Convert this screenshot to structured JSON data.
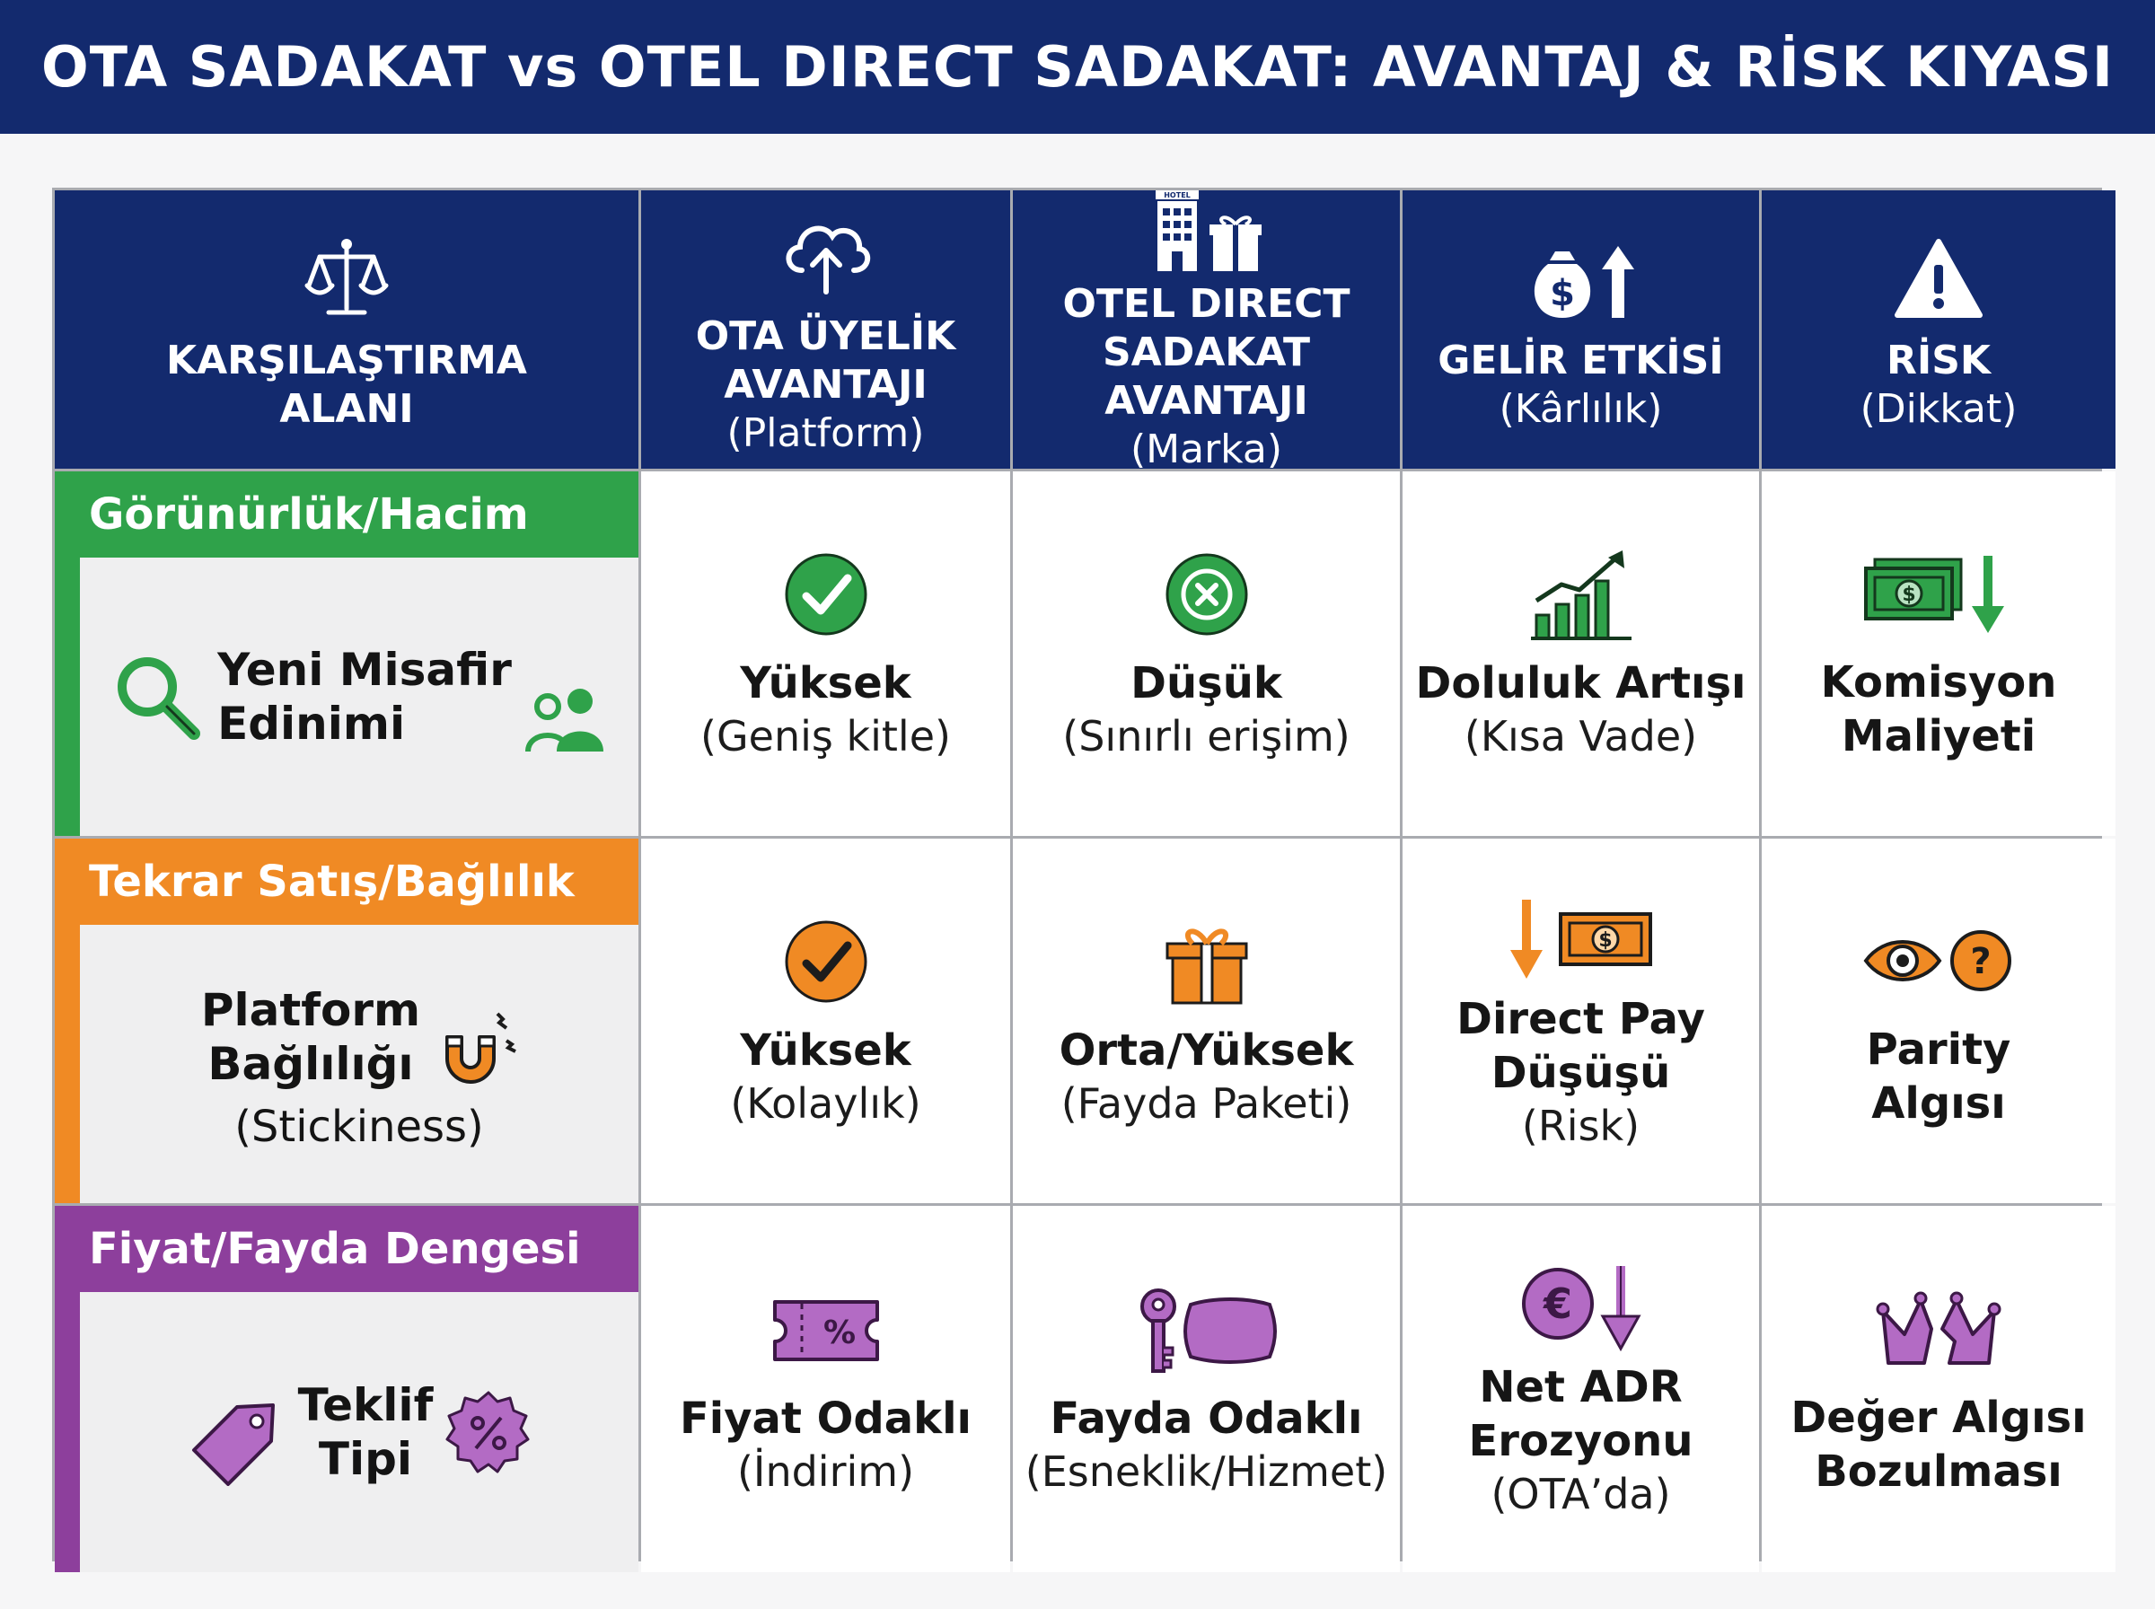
{
  "title": "OTA SADAKAT vs OTEL DIRECT SADAKAT: AVANTAJ & RİSK KIYASI",
  "colors": {
    "navy": "#132a6e",
    "green": "#2fa24a",
    "orange": "#f08a24",
    "purple": "#8d3f9c"
  },
  "header": [
    {
      "main": "KARŞILAŞTIRMA\nALANI",
      "sub": "",
      "icon": "scales-icon"
    },
    {
      "main": "OTA ÜYELİK\nAVANTAJI",
      "sub": "(Platform)",
      "icon": "cloud-upload-icon"
    },
    {
      "main": "OTEL DIRECT\nSADAKAT AVANTAJI",
      "sub": "(Marka)",
      "icon": "hotel-gift-icon"
    },
    {
      "main": "GELİR ETKİSİ",
      "sub": "(Kârlılık)",
      "icon": "money-bag-up-icon"
    },
    {
      "main": "RİSK",
      "sub": "(Dikkat)",
      "icon": "warning-icon"
    }
  ],
  "rows": [
    {
      "category": "Görünürlük/Hacim",
      "label": "Yeni Misafir\nEdinimi",
      "label_sub": "",
      "cells": [
        {
          "main": "Yüksek",
          "sub": "(Geniş kitle)",
          "icon": "check-circle-icon"
        },
        {
          "main": "Düşük",
          "sub": "(Sınırlı erişim)",
          "icon": "x-circle-icon"
        },
        {
          "main": "Doluluk Artışı",
          "sub": "(Kısa Vade)",
          "icon": "bar-chart-up-icon"
        },
        {
          "main": "Komisyon\nMaliyeti",
          "sub": "",
          "icon": "cash-down-icon"
        }
      ]
    },
    {
      "category": "Tekrar Satış/Bağlılık",
      "label": "Platform\nBağlılığı",
      "label_sub": "(Stickiness)",
      "cells": [
        {
          "main": "Yüksek",
          "sub": "(Kolaylık)",
          "icon": "check-circle-icon"
        },
        {
          "main": "Orta/Yüksek",
          "sub": "(Fayda Paketi)",
          "icon": "gift-icon"
        },
        {
          "main": "Direct Pay\nDüşüşü",
          "sub": "(Risk)",
          "icon": "down-arrow-cash-icon"
        },
        {
          "main": "Parity\nAlgısı",
          "sub": "",
          "icon": "eye-question-icon"
        }
      ]
    },
    {
      "category": "Fiyat/Fayda Dengesi",
      "label": "Teklif\nTipi",
      "label_sub": "",
      "cells": [
        {
          "main": "Fiyat Odaklı",
          "sub": "(İndirim)",
          "icon": "percent-ticket-icon"
        },
        {
          "main": "Fayda Odaklı",
          "sub": "(Esneklik/Hizmet)",
          "icon": "key-pillow-icon"
        },
        {
          "main": "Net ADR\nErozyonu",
          "sub": "(OTA’da)",
          "icon": "euro-down-icon"
        },
        {
          "main": "Değer Algısı\nBozulması",
          "sub": "",
          "icon": "broken-crown-icon"
        }
      ]
    }
  ]
}
